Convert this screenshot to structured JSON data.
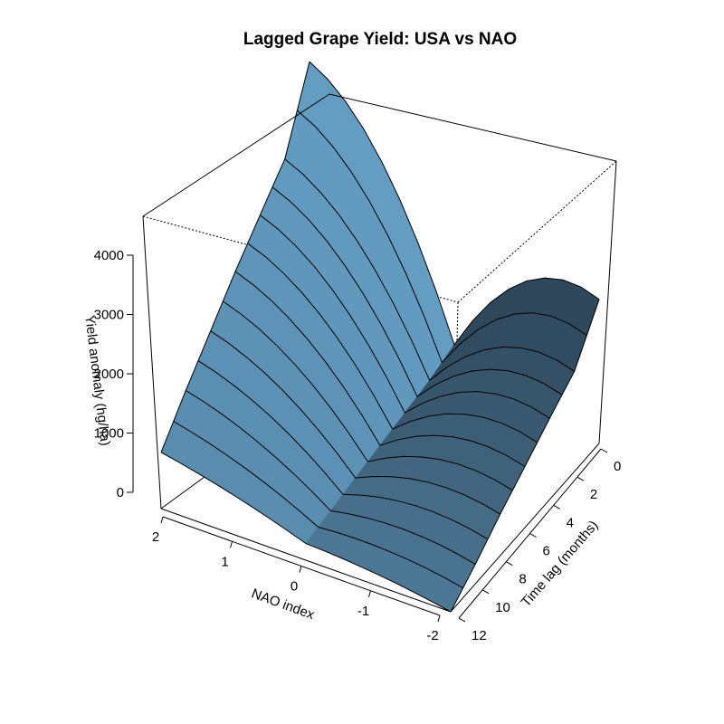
{
  "chart_data": {
    "type": "surface",
    "title": "Lagged Grape Yield: USA vs NAO",
    "xlabel": "NAO index",
    "ylabel": "Time lag (months)",
    "zlabel": "Yield anomaly (hg/ha)",
    "x_ticks": [
      "2",
      "1",
      "0",
      "-1",
      "-2"
    ],
    "y_ticks": [
      "0",
      "2",
      "4",
      "6",
      "8",
      "10",
      "12"
    ],
    "z_ticks": [
      "0",
      "1000",
      "2000",
      "3000",
      "4000"
    ],
    "xlim": [
      -2,
      2
    ],
    "ylim": [
      0,
      12
    ],
    "zlim": [
      0,
      4700
    ],
    "surface_color_light": "#6FAED8",
    "surface_color_dark": "#263A4A",
    "edge_y_at_nao_2": [
      {
        "lag": 12,
        "yield": 950
      },
      {
        "lag": 10,
        "yield": 1520
      },
      {
        "lag": 8,
        "yield": 2050
      },
      {
        "lag": 6,
        "yield": 2580
      },
      {
        "lag": 4,
        "yield": 3060
      },
      {
        "lag": 2,
        "yield": 3530
      },
      {
        "lag": 0,
        "yield": 4700
      }
    ],
    "edge_at_nao_minus2": [
      {
        "lag": 12,
        "yield": 0
      },
      {
        "lag": 10,
        "yield": 330
      },
      {
        "lag": 8,
        "yield": 700
      },
      {
        "lag": 6,
        "yield": 1030
      },
      {
        "lag": 4,
        "yield": 1370
      },
      {
        "lag": 2,
        "yield": 1690
      },
      {
        "lag": 0,
        "yield": 2430
      }
    ],
    "edge_at_lag_12": [
      {
        "nao": 2,
        "yield": 950
      },
      {
        "nao": 0,
        "yield": 260
      },
      {
        "nao": -2,
        "yield": 0
      }
    ],
    "edge_at_lag_0": [
      {
        "nao": 2,
        "yield": 4700
      },
      {
        "nao": 0,
        "yield": 490
      },
      {
        "nao": -2,
        "yield": 2430
      }
    ]
  }
}
